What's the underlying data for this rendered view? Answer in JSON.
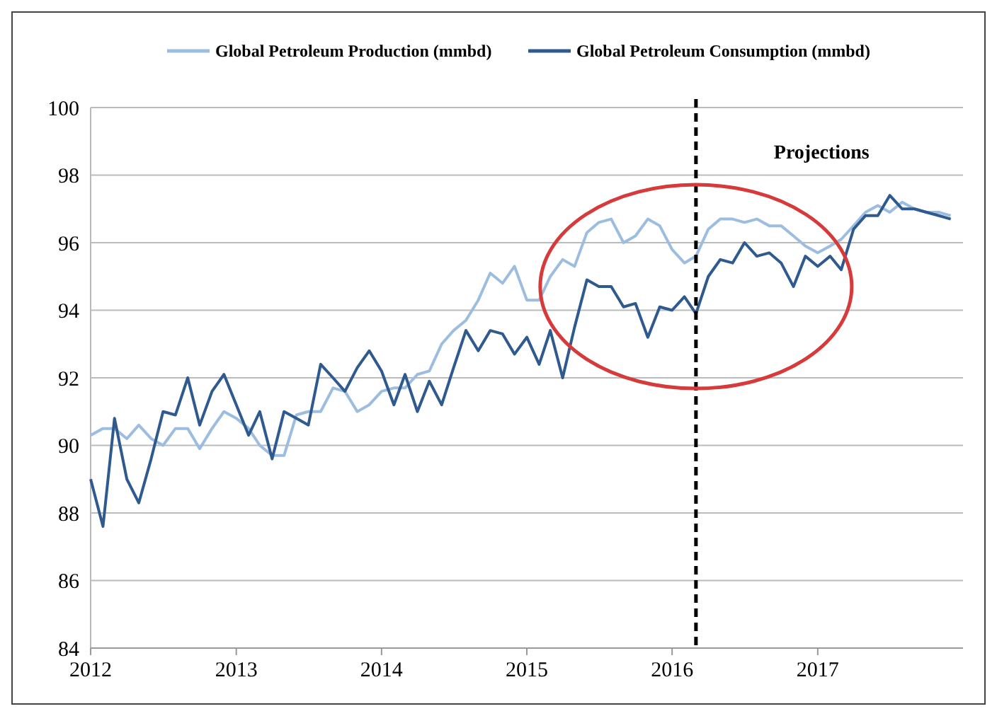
{
  "chart_data": {
    "type": "line",
    "x": [
      "2012-01",
      "2012-02",
      "2012-03",
      "2012-04",
      "2012-05",
      "2012-06",
      "2012-07",
      "2012-08",
      "2012-09",
      "2012-10",
      "2012-11",
      "2012-12",
      "2013-01",
      "2013-02",
      "2013-03",
      "2013-04",
      "2013-05",
      "2013-06",
      "2013-07",
      "2013-08",
      "2013-09",
      "2013-10",
      "2013-11",
      "2013-12",
      "2014-01",
      "2014-02",
      "2014-03",
      "2014-04",
      "2014-05",
      "2014-06",
      "2014-07",
      "2014-08",
      "2014-09",
      "2014-10",
      "2014-11",
      "2014-12",
      "2015-01",
      "2015-02",
      "2015-03",
      "2015-04",
      "2015-05",
      "2015-06",
      "2015-07",
      "2015-08",
      "2015-09",
      "2015-10",
      "2015-11",
      "2015-12",
      "2016-01",
      "2016-02",
      "2016-03",
      "2016-04",
      "2016-05",
      "2016-06",
      "2016-07",
      "2016-08",
      "2016-09",
      "2016-10",
      "2016-11",
      "2016-12",
      "2017-01",
      "2017-02",
      "2017-03",
      "2017-04",
      "2017-05",
      "2017-06",
      "2017-07",
      "2017-08",
      "2017-09",
      "2017-10",
      "2017-11",
      "2017-12"
    ],
    "series": [
      {
        "name": "Global Petroleum Production (mmbd)",
        "color": "#9dbde0",
        "values": [
          90.3,
          90.5,
          90.5,
          90.2,
          90.6,
          90.2,
          90.0,
          90.5,
          90.5,
          89.9,
          90.5,
          91.0,
          90.8,
          90.5,
          90.0,
          89.7,
          89.7,
          90.9,
          91.0,
          91.0,
          91.7,
          91.6,
          91.0,
          91.2,
          91.6,
          91.7,
          91.7,
          92.1,
          92.2,
          93.0,
          93.4,
          93.7,
          94.3,
          95.1,
          94.8,
          95.3,
          94.3,
          94.3,
          95.0,
          95.5,
          95.3,
          96.3,
          96.6,
          96.7,
          96.0,
          96.2,
          96.7,
          96.5,
          95.8,
          95.4,
          95.6,
          96.4,
          96.7,
          96.7,
          96.6,
          96.7,
          96.5,
          96.5,
          96.2,
          95.9,
          95.7,
          95.9,
          96.1,
          96.5,
          96.9,
          97.1,
          96.9,
          97.2,
          97.0,
          96.9,
          96.9,
          96.8
        ]
      },
      {
        "name": "Global Petroleum Consumption (mmbd)",
        "color": "#2f5a8f",
        "values": [
          89.0,
          87.6,
          90.8,
          89.0,
          88.3,
          89.6,
          91.0,
          90.9,
          92.0,
          90.6,
          91.6,
          92.1,
          91.2,
          90.3,
          91.0,
          89.6,
          91.0,
          90.8,
          90.6,
          92.4,
          92.0,
          91.6,
          92.3,
          92.8,
          92.2,
          91.2,
          92.1,
          91.0,
          91.9,
          91.2,
          92.3,
          93.4,
          92.8,
          93.4,
          93.3,
          92.7,
          93.2,
          92.4,
          93.4,
          92.0,
          93.5,
          94.9,
          94.7,
          94.7,
          94.1,
          94.2,
          93.2,
          94.1,
          94.0,
          94.4,
          93.9,
          95.0,
          95.5,
          95.4,
          96.0,
          95.6,
          95.7,
          95.4,
          94.7,
          95.6,
          95.3,
          95.6,
          95.2,
          96.4,
          96.8,
          96.8,
          97.4,
          97.0,
          97.0,
          96.9,
          96.8,
          96.7
        ]
      }
    ],
    "xlim": [
      "2012-01",
      "2018-01"
    ],
    "xticks": [
      {
        "value": "2012-01",
        "label": "2012"
      },
      {
        "value": "2013-01",
        "label": "2013"
      },
      {
        "value": "2014-01",
        "label": "2014"
      },
      {
        "value": "2015-01",
        "label": "2015"
      },
      {
        "value": "2016-01",
        "label": "2016"
      },
      {
        "value": "2017-01",
        "label": "2017"
      }
    ],
    "ylim": [
      84,
      100
    ],
    "yticks": [
      84,
      86,
      88,
      90,
      92,
      94,
      96,
      98,
      100
    ],
    "grid": "y",
    "legend": "top",
    "marker": "none",
    "line_style": "solid",
    "ref_lines": [
      {
        "axis": "x",
        "value": "2016-03",
        "color": "#000000",
        "line_style": "dashed"
      }
    ],
    "annotations": [
      "Projections"
    ]
  }
}
